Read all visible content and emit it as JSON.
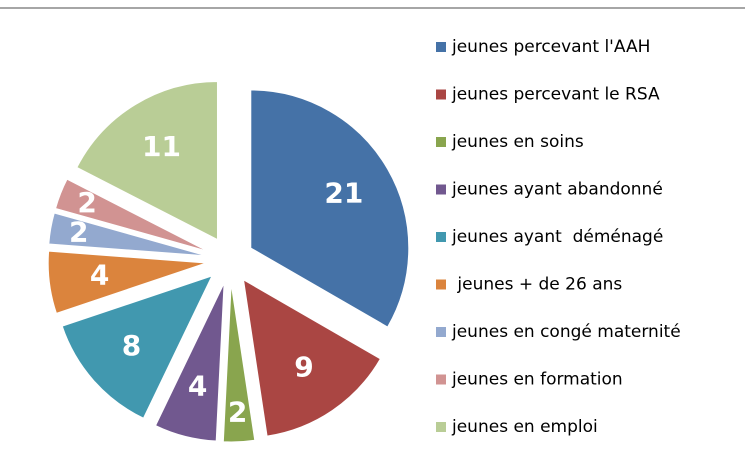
{
  "chart_data": {
    "type": "pie",
    "categories": [
      "jeunes percevant l'AAH",
      "jeunes percevant le RSA",
      "jeunes en soins",
      "jeunes ayant abandonné",
      "jeunes ayant  déménagé",
      " jeunes + de 26 ans",
      "jeunes en congé maternité",
      "jeunes en formation",
      "jeunes en emploi"
    ],
    "values": [
      21,
      9,
      2,
      4,
      8,
      4,
      2,
      2,
      11
    ],
    "colors": [
      "#4572a7",
      "#aa4643",
      "#89a54e",
      "#71588f",
      "#4198af",
      "#db843d",
      "#93a9cf",
      "#d19392",
      "#b9cd96"
    ],
    "legend": "right"
  }
}
